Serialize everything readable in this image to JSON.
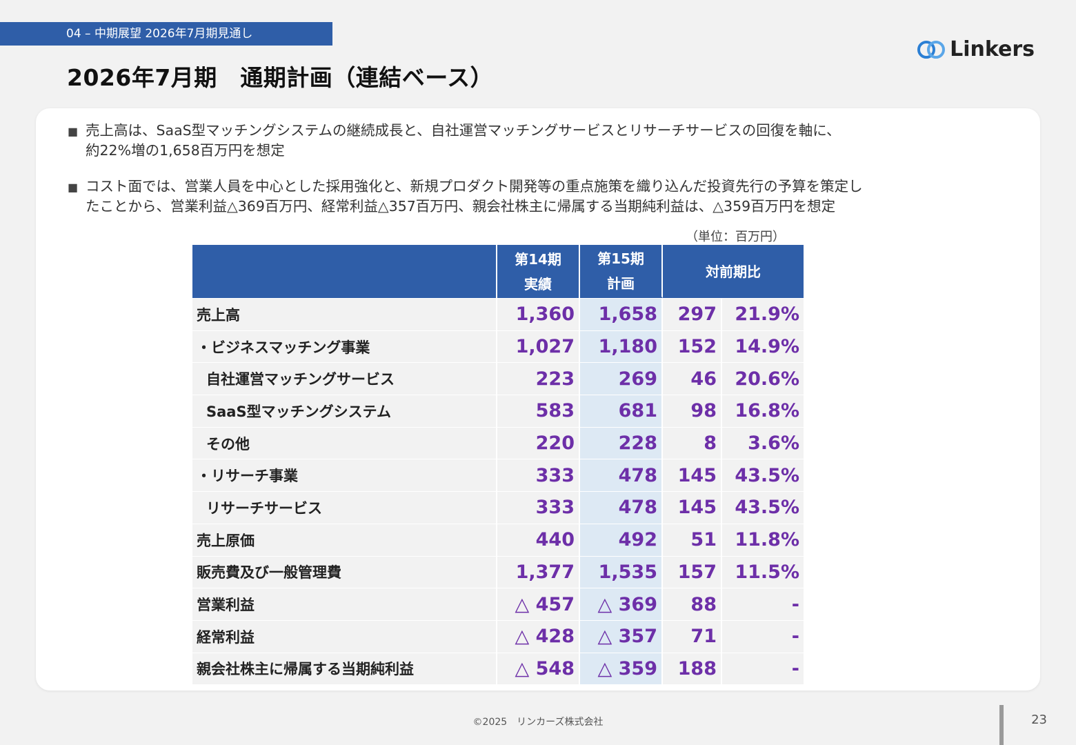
{
  "header": {
    "section": "04 – 中期展望 2026年7月期見通し",
    "title": "2026年7月期　通期計画（連結ベース）",
    "logo_text": "Linkers"
  },
  "bullets": [
    {
      "line1": "売上高は、SaaS型マッチングシステムの継続成長と、自社運営マッチングサービスとリサーチサービスの回復を軸に、",
      "line2": "約22%増の1,658百万円を想定"
    },
    {
      "line1": "コスト面では、営業人員を中心とした採用強化と、新規プロダクト開発等の重点施策を織り込んだ投資先行の予算を策定し",
      "line2": "たことから、営業利益△369百万円、経常利益△357百万円、親会社株主に帰属する当期純利益は、△359百万円を想定"
    }
  ],
  "unit": "（単位：百万円）",
  "table": {
    "headers": {
      "col1_line1": "第14期",
      "col1_line2": "実績",
      "col2_line1": "第15期",
      "col2_line2": "計画",
      "col3": "対前期比"
    },
    "rows": [
      {
        "label": "売上高",
        "actual": "1,360",
        "plan": "1,658",
        "diff": "297",
        "pct": "21.9%"
      },
      {
        "label": "・ビジネスマッチング事業",
        "actual": "1,027",
        "plan": "1,180",
        "diff": "152",
        "pct": "14.9%"
      },
      {
        "label": "自社運営マッチングサービス",
        "actual": "223",
        "plan": "269",
        "diff": "46",
        "pct": "20.6%"
      },
      {
        "label": "SaaS型マッチングシステム",
        "actual": "583",
        "plan": "681",
        "diff": "98",
        "pct": "16.8%"
      },
      {
        "label": "その他",
        "actual": "220",
        "plan": "228",
        "diff": "8",
        "pct": "3.6%"
      },
      {
        "label": "・リサーチ事業",
        "actual": "333",
        "plan": "478",
        "diff": "145",
        "pct": "43.5%"
      },
      {
        "label": "リサーチサービス",
        "actual": "333",
        "plan": "478",
        "diff": "145",
        "pct": "43.5%"
      },
      {
        "label": "売上原価",
        "actual": "440",
        "plan": "492",
        "diff": "51",
        "pct": "11.8%"
      },
      {
        "label": "販売費及び一般管理費",
        "actual": "1,377",
        "plan": "1,535",
        "diff": "157",
        "pct": "11.5%"
      },
      {
        "label": "営業利益",
        "actual": "△ 457",
        "plan": "△ 369",
        "diff": "88",
        "pct": "-"
      },
      {
        "label": "経常利益",
        "actual": "△ 428",
        "plan": "△ 357",
        "diff": "71",
        "pct": "-"
      },
      {
        "label": "親会社株主に帰属する当期純利益",
        "actual": "△ 548",
        "plan": "△ 359",
        "diff": "188",
        "pct": "-"
      }
    ]
  },
  "footer": {
    "copyright": "©2025　リンカーズ株式会社",
    "page": "23"
  },
  "colors": {
    "header_blue": "#2f5ea8",
    "value_purple": "#6d2fa8",
    "plan_highlight": "#dde9f4"
  }
}
